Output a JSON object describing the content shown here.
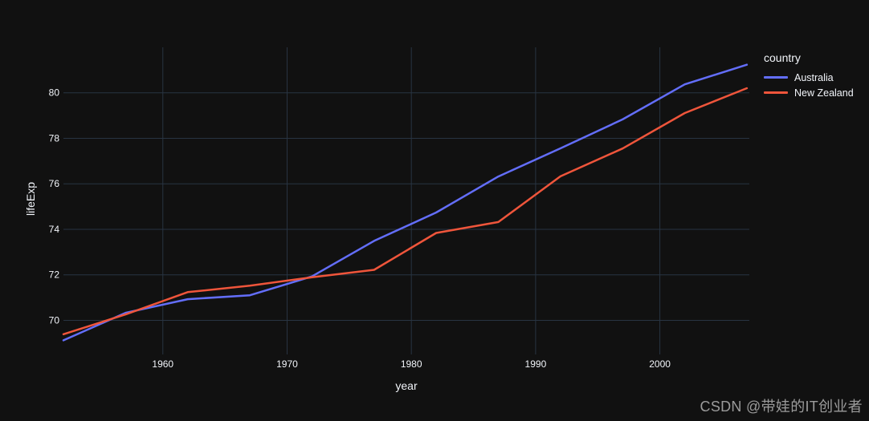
{
  "watermark": {
    "text": "CSDN @带娃的IT创业者"
  },
  "chart_data": {
    "type": "line",
    "title": "",
    "xlabel": "year",
    "ylabel": "lifeExp",
    "legend_title": "country",
    "legend_position": "right",
    "grid": true,
    "background_color": "#111111",
    "grid_color": "#283442",
    "text_color": "#f2f5fa",
    "x": [
      1952,
      1957,
      1962,
      1967,
      1972,
      1977,
      1982,
      1987,
      1992,
      1997,
      2002,
      2007
    ],
    "series": [
      {
        "name": "Australia",
        "color": "#636efa",
        "values": [
          69.12,
          70.33,
          70.93,
          71.1,
          71.93,
          73.49,
          74.74,
          76.32,
          77.56,
          78.83,
          80.37,
          81.235
        ]
      },
      {
        "name": "New Zealand",
        "color": "#ef553b",
        "values": [
          69.39,
          70.26,
          71.24,
          71.52,
          71.89,
          72.22,
          73.84,
          74.32,
          76.33,
          77.55,
          79.11,
          80.204
        ]
      }
    ],
    "x_ticks": [
      1960,
      1970,
      1980,
      1990,
      2000
    ],
    "y_ticks": [
      70,
      72,
      74,
      76,
      78,
      80
    ],
    "x_range": [
      1952,
      2007.2
    ],
    "y_range": [
      68.5,
      82.0
    ]
  }
}
